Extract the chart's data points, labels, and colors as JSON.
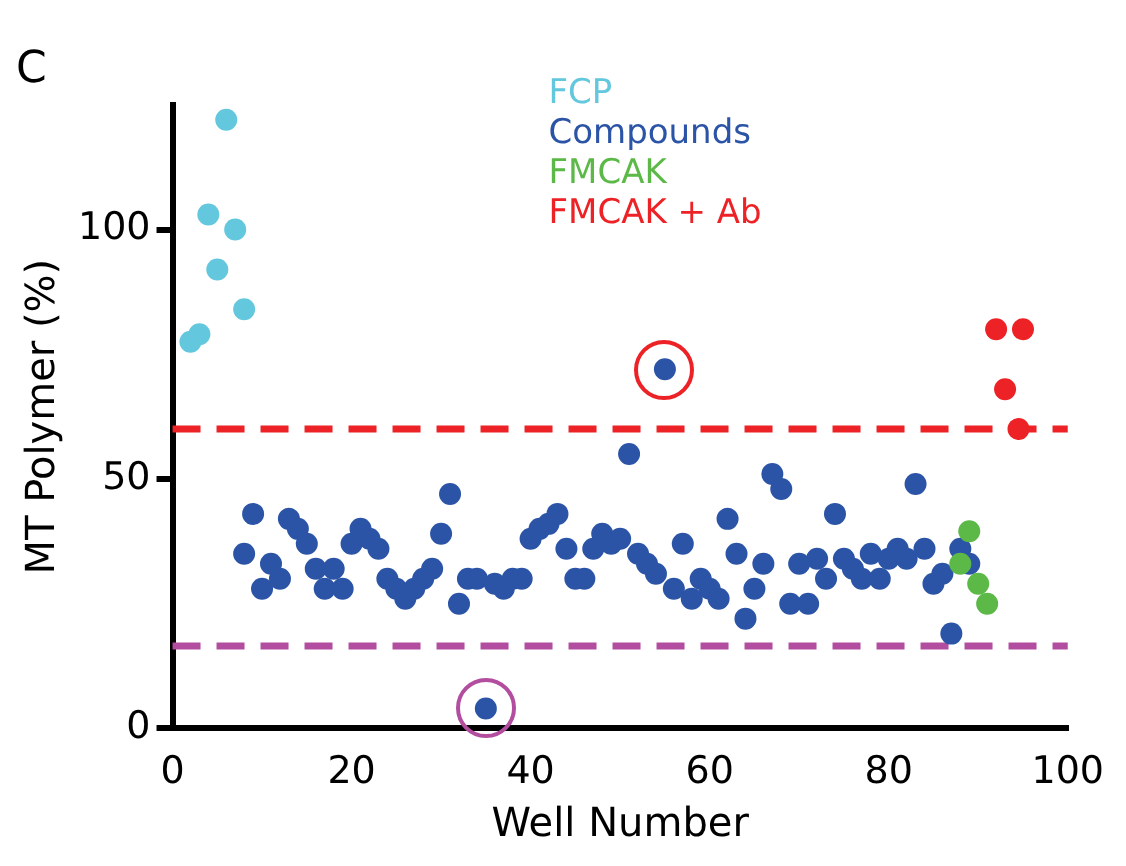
{
  "chart_data": {
    "type": "scatter",
    "title": "C",
    "xlabel": "Well Number",
    "ylabel": "MT Polymer (%)",
    "xlim": [
      0,
      100
    ],
    "xticks": [
      0,
      20,
      40,
      60,
      80,
      100
    ],
    "ylim": [
      0,
      125
    ],
    "yticks": [
      0,
      50,
      100
    ],
    "grid": false,
    "legend": "top",
    "marker": "circle",
    "series": [
      {
        "name": "FCP",
        "color": "#63c8dd",
        "x": [
          2,
          3,
          4,
          5,
          6,
          7,
          8
        ],
        "values": [
          77.5,
          79,
          103,
          92,
          122,
          100,
          84
        ]
      },
      {
        "name": "Compounds",
        "color": "#2b54a6",
        "x": [
          8,
          9,
          10,
          11,
          12,
          13,
          14,
          15,
          16,
          17,
          18,
          19,
          20,
          21,
          22,
          23,
          24,
          25,
          26,
          27,
          28,
          29,
          30,
          31,
          32,
          33,
          34,
          35,
          36,
          37,
          38,
          39,
          40,
          41,
          42,
          43,
          44,
          45,
          46,
          47,
          48,
          49,
          50,
          51,
          52,
          53,
          54,
          55,
          56,
          57,
          58,
          59,
          60,
          61,
          62,
          63,
          64,
          65,
          66,
          67,
          68,
          69,
          70,
          71,
          72,
          73,
          74,
          75,
          76,
          77,
          78,
          79,
          80,
          81,
          82,
          83,
          84,
          85,
          86,
          87,
          88,
          89
        ],
        "values": [
          35,
          43,
          28,
          33,
          30,
          42,
          40,
          37,
          32,
          28,
          32,
          28,
          37,
          40,
          38,
          36,
          30,
          28,
          26,
          28,
          30,
          32,
          39,
          47,
          25,
          30,
          30,
          4,
          29,
          28,
          30,
          30,
          38,
          40,
          41,
          43,
          36,
          30,
          30,
          36,
          39,
          37,
          38,
          55,
          35,
          33,
          31,
          72,
          28,
          37,
          26,
          30,
          28,
          26,
          42,
          35,
          22,
          28,
          33,
          51,
          48,
          25,
          33,
          25,
          34,
          30,
          43,
          34,
          32,
          30,
          35,
          30,
          34,
          36,
          34,
          49,
          36,
          29,
          31,
          19,
          36,
          33
        ]
      },
      {
        "name": "FMCAK",
        "color": "#5cb947",
        "x": [
          88,
          89,
          90,
          91
        ],
        "values": [
          33,
          39.5,
          29,
          25
        ]
      },
      {
        "name": "FMCAK + Ab",
        "color": "#ec2227",
        "x": [
          92,
          93,
          94.5,
          95
        ],
        "values": [
          80,
          68,
          60,
          80
        ]
      }
    ],
    "ref_lines": [
      {
        "axis": "y",
        "value": 60,
        "color": "#ec2227",
        "line_style": "dashed"
      },
      {
        "axis": "y",
        "value": 16.5,
        "color": "#b24da0",
        "line_style": "dashed"
      }
    ]
  }
}
